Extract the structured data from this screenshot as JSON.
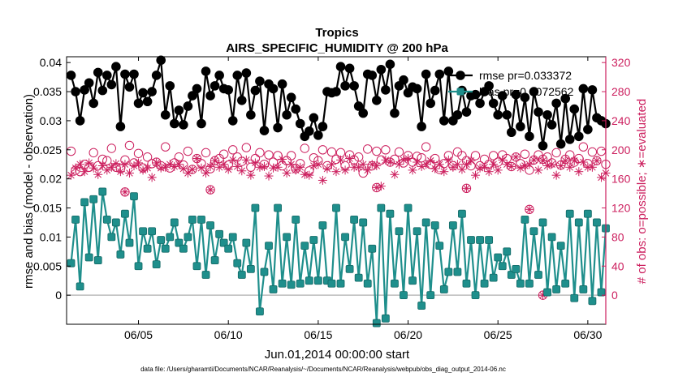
{
  "chart_data": {
    "type": "line",
    "title": "Tropics",
    "subtitle": "AIRS_SPECIFIC_HUMIDITY @ 200 hPa",
    "xlabel": "Jun.01,2014 00:00:00 start",
    "ylabel": "rmse and bias (model - observation)",
    "y2label": "# of obs: o=possible; ∗=evaluated",
    "footnote": "data file: /Users/gharamti/Documents/NCAR/Reanalysis/~/Documents/NCAR/Reanalysis/webpub/obs_diag_output_2014-06.nc",
    "xlim": [
      1.0,
      31.0
    ],
    "ylim": [
      -0.005,
      0.041
    ],
    "y2lim": [
      -40,
      328
    ],
    "x_ticks": [
      5,
      10,
      15,
      20,
      25,
      30
    ],
    "x_tick_labels": [
      "06/05",
      "06/10",
      "06/15",
      "06/20",
      "06/25",
      "06/30"
    ],
    "y_ticks": [
      0,
      0.005,
      0.01,
      0.015,
      0.02,
      0.025,
      0.03,
      0.035,
      0.04
    ],
    "y_tick_labels": [
      "0",
      "0.005",
      "0.01",
      "0.015",
      "0.02",
      "0.025",
      "0.03",
      "0.035",
      "0.04"
    ],
    "y2_ticks": [
      0,
      40,
      80,
      120,
      160,
      200,
      240,
      280,
      320
    ],
    "y2_tick_labels": [
      "0",
      "40",
      "80",
      "120",
      "160",
      "200",
      "240",
      "280",
      "320"
    ],
    "colors": {
      "rmse": "#000000",
      "bias": "#1f8f8c",
      "obs": "#cc1f5e",
      "zero_line": "#bbbbbb"
    },
    "series": [
      {
        "name": "rmse",
        "legend": "rmse pr=0.033372",
        "marker": "circle",
        "x": [
          1.25,
          1.5,
          1.75,
          2.0,
          2.25,
          2.5,
          2.75,
          3.0,
          3.25,
          3.5,
          3.75,
          4.0,
          4.25,
          4.5,
          4.75,
          5.0,
          5.25,
          5.5,
          5.75,
          6.0,
          6.25,
          6.5,
          6.75,
          7.0,
          7.25,
          7.5,
          7.75,
          8.0,
          8.25,
          8.5,
          8.75,
          9.0,
          9.25,
          9.5,
          9.75,
          10.0,
          10.25,
          10.5,
          10.75,
          11.0,
          11.25,
          11.5,
          11.75,
          12.0,
          12.25,
          12.5,
          12.75,
          13.0,
          13.25,
          13.5,
          13.75,
          14.0,
          14.25,
          14.5,
          14.75,
          15.0,
          15.25,
          15.5,
          15.75,
          16.0,
          16.25,
          16.5,
          16.75,
          17.0,
          17.25,
          17.5,
          17.75,
          18.0,
          18.25,
          18.5,
          18.75,
          19.0,
          19.25,
          19.5,
          19.75,
          20.0,
          20.25,
          20.5,
          20.75,
          21.0,
          21.25,
          21.5,
          21.75,
          22.0,
          22.25,
          22.5,
          22.75,
          23.0,
          23.25,
          23.5,
          23.75,
          24.0,
          24.25,
          24.5,
          24.75,
          25.0,
          25.25,
          25.5,
          25.75,
          26.0,
          26.25,
          26.5,
          26.75,
          27.0,
          27.25,
          27.5,
          27.75,
          28.0,
          28.25,
          28.5,
          28.75,
          29.0,
          29.25,
          29.5,
          29.75,
          30.0,
          30.25,
          30.5,
          30.75,
          31.0
        ],
        "values": [
          0.0378,
          0.035,
          0.03,
          0.0353,
          0.0365,
          0.033,
          0.0383,
          0.0352,
          0.0378,
          0.0362,
          0.0393,
          0.029,
          0.038,
          0.0358,
          0.038,
          0.033,
          0.0348,
          0.0333,
          0.035,
          0.0378,
          0.0404,
          0.031,
          0.036,
          0.0295,
          0.0318,
          0.0293,
          0.0325,
          0.0343,
          0.0355,
          0.0295,
          0.0385,
          0.0343,
          0.036,
          0.0378,
          0.0355,
          0.0353,
          0.03,
          0.0378,
          0.0335,
          0.0382,
          0.031,
          0.0352,
          0.0368,
          0.0283,
          0.0363,
          0.0355,
          0.0288,
          0.0363,
          0.031,
          0.034,
          0.032,
          0.0295,
          0.0273,
          0.0282,
          0.0305,
          0.0275,
          0.029,
          0.035,
          0.0348,
          0.035,
          0.0393,
          0.036,
          0.039,
          0.036,
          0.0325,
          0.0313,
          0.038,
          0.0378,
          0.0335,
          0.0388,
          0.0353,
          0.0397,
          0.0313,
          0.036,
          0.037,
          0.0348,
          0.0358,
          0.0355,
          0.029,
          0.038,
          0.033,
          0.0352,
          0.038,
          0.03,
          0.0385,
          0.03,
          0.031,
          0.0352,
          0.0315,
          0.0343,
          0.0345,
          0.033,
          0.035,
          0.036,
          0.033,
          0.031,
          0.0343,
          0.031,
          0.028,
          0.0345,
          0.029,
          0.034,
          0.0273,
          0.035,
          0.0315,
          0.0257,
          0.031,
          0.0293,
          0.033,
          0.026,
          0.0338,
          0.0268,
          0.032,
          0.0273,
          0.0355,
          0.0285,
          0.0353,
          0.0305,
          0.03,
          0.0295
        ]
      },
      {
        "name": "bias",
        "legend": "bias pr=0.0072562",
        "marker": "square",
        "x": [
          1.25,
          1.5,
          1.75,
          2.0,
          2.25,
          2.5,
          2.75,
          3.0,
          3.25,
          3.5,
          3.75,
          4.0,
          4.25,
          4.5,
          4.75,
          5.0,
          5.25,
          5.5,
          5.75,
          6.0,
          6.25,
          6.5,
          6.75,
          7.0,
          7.25,
          7.5,
          7.75,
          8.0,
          8.25,
          8.5,
          8.75,
          9.0,
          9.25,
          9.5,
          9.75,
          10.0,
          10.25,
          10.5,
          10.75,
          11.0,
          11.25,
          11.5,
          11.75,
          12.0,
          12.25,
          12.5,
          12.75,
          13.0,
          13.25,
          13.5,
          13.75,
          14.0,
          14.25,
          14.5,
          14.75,
          15.0,
          15.25,
          15.5,
          15.75,
          16.0,
          16.25,
          16.5,
          16.75,
          17.0,
          17.25,
          17.5,
          17.75,
          18.0,
          18.25,
          18.5,
          18.75,
          19.0,
          19.25,
          19.5,
          19.75,
          20.0,
          20.25,
          20.5,
          20.75,
          21.0,
          21.25,
          21.5,
          21.75,
          22.0,
          22.25,
          22.5,
          22.75,
          23.0,
          23.25,
          23.5,
          23.75,
          24.0,
          24.25,
          24.5,
          24.75,
          25.0,
          25.25,
          25.5,
          25.75,
          26.0,
          26.25,
          26.5,
          26.75,
          27.0,
          27.25,
          27.5,
          27.75,
          28.0,
          28.25,
          28.5,
          28.75,
          29.0,
          29.25,
          29.5,
          29.75,
          30.0,
          30.25,
          30.5,
          30.75,
          31.0
        ],
        "values": [
          0.0055,
          0.013,
          0.0015,
          0.016,
          0.0065,
          0.0165,
          0.006,
          0.0178,
          0.013,
          0.01,
          0.0125,
          0.007,
          0.014,
          0.009,
          0.017,
          0.005,
          0.011,
          0.008,
          0.011,
          0.0053,
          0.0095,
          0.008,
          0.01,
          0.0125,
          0.009,
          0.008,
          0.01,
          0.013,
          0.005,
          0.013,
          0.0035,
          0.012,
          0.006,
          0.0105,
          0.009,
          0.008,
          0.01,
          0.0055,
          0.0035,
          0.009,
          0.0045,
          0.015,
          -0.0028,
          0.004,
          0.0085,
          0.001,
          0.015,
          0.002,
          0.01,
          0.0018,
          0.013,
          0.002,
          0.0085,
          0.0025,
          0.0095,
          0.0025,
          0.012,
          0.0025,
          0.002,
          0.015,
          0.002,
          0.01,
          0.0045,
          0.013,
          0.003,
          0.0125,
          0.002,
          0.008,
          -0.0048,
          0.015,
          -0.004,
          0.014,
          0.002,
          0.011,
          0.0,
          0.015,
          0.0025,
          0.011,
          -0.0018,
          0.0125,
          0.0,
          0.012,
          0.0085,
          0.001,
          0.004,
          0.012,
          0.004,
          0.014,
          0.002,
          0.0095,
          0.0,
          0.0095,
          0.002,
          0.0095,
          0.003,
          0.0065,
          0.005,
          0.0075,
          0.0035,
          0.0045,
          0.002,
          0.013,
          0.002,
          0.011,
          0.0035,
          0.0125,
          0.0005,
          0.01,
          0.001,
          0.0085,
          0.002,
          0.014,
          -0.0005,
          0.0125,
          0.001,
          0.014,
          -0.001,
          0.0125,
          0.0005,
          0.0115
        ]
      },
      {
        "name": "obs possible",
        "axis": "right",
        "marker": "circle-open",
        "x": [
          1.25,
          1.5,
          1.75,
          2.0,
          2.25,
          2.5,
          2.75,
          3.0,
          3.25,
          3.5,
          3.75,
          4.0,
          4.25,
          4.5,
          4.75,
          5.0,
          5.25,
          5.5,
          5.75,
          6.0,
          6.25,
          6.5,
          6.75,
          7.0,
          7.25,
          7.5,
          7.75,
          8.0,
          8.25,
          8.5,
          8.75,
          9.0,
          9.25,
          9.5,
          9.75,
          10.0,
          10.25,
          10.5,
          10.75,
          11.0,
          11.25,
          11.5,
          11.75,
          12.0,
          12.25,
          12.5,
          12.75,
          13.0,
          13.25,
          13.5,
          13.75,
          14.0,
          14.25,
          14.5,
          14.75,
          15.0,
          15.25,
          15.5,
          15.75,
          16.0,
          16.25,
          16.5,
          16.75,
          17.0,
          17.25,
          17.5,
          17.75,
          18.0,
          18.25,
          18.5,
          18.75,
          19.0,
          19.25,
          19.5,
          19.75,
          20.0,
          20.25,
          20.5,
          20.75,
          21.0,
          21.25,
          21.5,
          21.75,
          22.0,
          22.25,
          22.5,
          22.75,
          23.0,
          23.25,
          23.5,
          23.75,
          24.0,
          24.25,
          24.5,
          24.75,
          25.0,
          25.25,
          25.5,
          25.75,
          26.0,
          26.25,
          26.5,
          26.75,
          27.0,
          27.25,
          27.5,
          27.75,
          28.0,
          28.25,
          28.5,
          28.75,
          29.0,
          29.25,
          29.5,
          29.75,
          30.0,
          30.25,
          30.5,
          30.75,
          31.0
        ],
        "values": [
          198,
          172,
          170,
          180,
          176,
          196,
          178,
          187,
          185,
          202,
          176,
          174,
          186,
          206,
          182,
          195,
          175,
          190,
          181,
          183,
          178,
          204,
          175,
          182,
          190,
          179,
          198,
          173,
          188,
          181,
          196,
          174,
          185,
          188,
          194,
          179,
          200,
          190,
          184,
          203,
          176,
          188,
          196,
          180,
          193,
          183,
          192,
          178,
          185,
          192,
          174,
          181,
          202,
          171,
          189,
          185,
          200,
          178,
          197,
          187,
          196,
          178,
          193,
          186,
          190,
          168,
          201,
          178,
          198,
          186,
          200,
          183,
          187,
          197,
          182,
          192,
          183,
          191,
          189,
          204,
          180,
          188,
          173,
          181,
          192,
          178,
          197,
          192,
          185,
          178,
          192,
          178,
          187,
          180,
          192,
          183,
          193,
          188,
          177,
          190,
          181,
          194,
          172,
          186,
          193,
          187,
          190,
          182,
          196,
          179,
          187,
          193,
          183,
          188,
          204,
          181,
          197,
          185,
          198,
          180
        ]
      },
      {
        "name": "obs evaluated",
        "axis": "right",
        "marker": "asterisk",
        "x": [
          1.25,
          1.5,
          1.75,
          2.0,
          2.25,
          2.5,
          2.75,
          3.0,
          3.25,
          3.5,
          3.75,
          4.0,
          4.25,
          4.5,
          4.75,
          5.0,
          5.25,
          5.5,
          5.75,
          6.0,
          6.25,
          6.5,
          6.75,
          7.0,
          7.25,
          7.5,
          7.75,
          8.0,
          8.25,
          8.5,
          8.75,
          9.0,
          9.25,
          9.5,
          9.75,
          10.0,
          10.25,
          10.5,
          10.75,
          11.0,
          11.25,
          11.5,
          11.75,
          12.0,
          12.25,
          12.5,
          12.75,
          13.0,
          13.25,
          13.5,
          13.75,
          14.0,
          14.25,
          14.5,
          14.75,
          15.0,
          15.25,
          15.5,
          15.75,
          16.0,
          16.25,
          16.5,
          16.75,
          17.0,
          17.25,
          17.5,
          17.75,
          18.0,
          18.25,
          18.5,
          18.75,
          19.0,
          19.25,
          19.5,
          19.75,
          20.0,
          20.25,
          20.5,
          20.75,
          21.0,
          21.25,
          21.5,
          21.75,
          22.0,
          22.25,
          22.5,
          22.75,
          23.0,
          23.25,
          23.5,
          23.75,
          24.0,
          24.25,
          24.5,
          24.75,
          25.0,
          25.25,
          25.5,
          25.75,
          26.0,
          26.25,
          26.5,
          26.75,
          27.0,
          27.25,
          27.5,
          27.75,
          28.0,
          28.25,
          28.5,
          28.75,
          29.0,
          29.25,
          29.5,
          29.75,
          30.0,
          30.25,
          30.5,
          30.75,
          31.0
        ],
        "values": [
          165,
          175,
          180,
          170,
          182,
          175,
          166,
          178,
          172,
          176,
          181,
          170,
          180,
          168,
          178,
          182,
          172,
          175,
          162,
          182,
          175,
          176,
          180,
          177,
          180,
          174,
          168,
          173,
          188,
          175,
          168,
          177,
          185,
          176,
          180,
          173,
          186,
          177,
          171,
          186,
          165,
          182,
          176,
          177,
          164,
          175,
          176,
          187,
          168,
          180,
          172,
          176,
          166,
          165,
          178,
          180,
          158,
          174,
          180,
          170,
          186,
          172,
          188,
          176,
          176,
          180,
          172,
          180,
          178,
          150,
          186,
          183,
          166,
          180,
          186,
          188,
          172,
          183,
          177,
          180,
          185,
          174,
          180,
          170,
          186,
          176,
          180,
          173,
          180,
          185,
          165,
          175,
          176,
          170,
          180,
          172,
          186,
          180,
          177,
          190,
          175,
          178,
          180,
          186,
          172,
          185,
          178,
          180,
          165,
          178,
          185,
          176,
          185,
          170,
          183,
          176,
          176,
          185,
          162,
          168
        ]
      }
    ],
    "extra_markers": [
      {
        "series": "obs possible",
        "x": [
          4.25,
          9.0,
          18.25,
          23.25,
          26.75,
          27.5
        ],
        "values": [
          142,
          145,
          148,
          147,
          118,
          0
        ]
      },
      {
        "series": "obs evaluated",
        "x": [
          4.25,
          9.0,
          18.25,
          23.25,
          26.75,
          27.5
        ],
        "values": [
          142,
          145,
          148,
          147,
          118,
          0
        ]
      }
    ],
    "legend": {
      "location": "top-right",
      "entries": [
        "rmse pr=0.033372",
        "bias pr=0.0072562"
      ]
    }
  }
}
